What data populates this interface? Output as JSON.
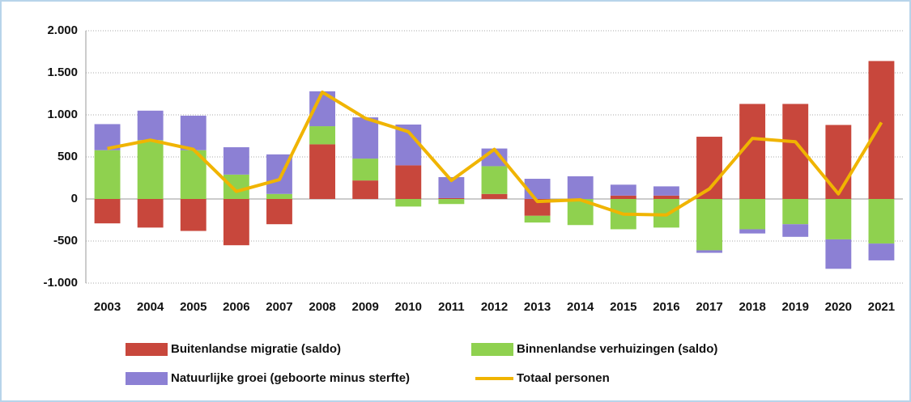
{
  "chart_data": {
    "type": "stacked-bar-line",
    "categories": [
      "2003",
      "2004",
      "2005",
      "2006",
      "2007",
      "2008",
      "2009",
      "2010",
      "2011",
      "2012",
      "2013",
      "2014",
      "2015",
      "2016",
      "2017",
      "2018",
      "2019",
      "2020",
      "2021"
    ],
    "series": [
      {
        "name": "Buitenlandse migratie (saldo)",
        "type": "bar",
        "color": "#c8473c",
        "values": [
          -290,
          -340,
          -380,
          -550,
          -300,
          650,
          220,
          400,
          10,
          60,
          -200,
          0,
          40,
          40,
          740,
          1130,
          1130,
          880,
          1640
        ]
      },
      {
        "name": "Binnenlandse verhuizingen (saldo)",
        "type": "bar",
        "color": "#8fd14f",
        "values": [
          580,
          700,
          580,
          290,
          60,
          215,
          260,
          -90,
          -60,
          330,
          -80,
          -310,
          -360,
          -340,
          -610,
          -360,
          -300,
          -480,
          -530
        ]
      },
      {
        "name": "Natuurlijke groei (geboorte minus sterfte)",
        "type": "bar",
        "color": "#8c80d4",
        "values": [
          310,
          350,
          410,
          325,
          470,
          415,
          490,
          485,
          250,
          210,
          240,
          270,
          130,
          110,
          -30,
          -50,
          -150,
          -350,
          -200
        ]
      },
      {
        "name": "Totaal personen",
        "type": "line",
        "color": "#f0b400",
        "values": [
          600,
          700,
          590,
          90,
          230,
          1270,
          960,
          800,
          220,
          590,
          -30,
          -10,
          -180,
          -190,
          120,
          720,
          680,
          60,
          910
        ]
      }
    ],
    "ylim": [
      -1000,
      2000
    ],
    "yticks": [
      {
        "value": -1000,
        "label": "-1.000"
      },
      -500,
      0,
      500,
      {
        "value": 1000,
        "label": "1.000"
      },
      {
        "value": 1500,
        "label": "1.500"
      },
      {
        "value": 2000,
        "label": "2.000"
      }
    ],
    "grid": true
  }
}
